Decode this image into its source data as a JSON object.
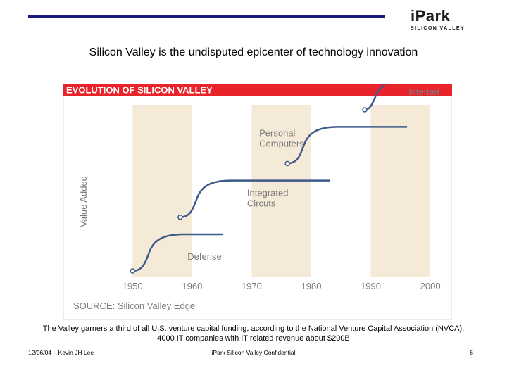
{
  "header": {
    "logo_main": "iPark",
    "logo_sub": "SILICON VALLEY"
  },
  "headline": "Silicon Valley is the undisputed epicenter of technology innovation",
  "figure": {
    "title": "EVOLUTION OF SILICON VALLEY",
    "source": "SOURCE: Silicon Valley Edge",
    "colors": {
      "banner": "#e8242a",
      "band": "#f5ead7",
      "line": "#3d5a8a",
      "label": "#7a7a7a"
    },
    "chart_data": {
      "type": "line",
      "title": "EVOLUTION OF SILICON VALLEY",
      "xlabel": "",
      "ylabel": "Value Added",
      "x_ticks": [
        "1950",
        "1960",
        "1970",
        "1980",
        "1990",
        "2000"
      ],
      "xlim": [
        1945,
        2002
      ],
      "shaded_decades": [
        [
          1950,
          1960
        ],
        [
          1970,
          1980
        ],
        [
          1990,
          2000
        ]
      ],
      "eras": [
        {
          "label_lines": [
            "Defense"
          ],
          "start": 1950,
          "level": 0
        },
        {
          "label_lines": [
            "Integrated",
            "Circuts"
          ],
          "start": 1958,
          "level": 1
        },
        {
          "label_lines": [
            "Personal",
            "Computers"
          ],
          "start": 1976,
          "level": 2
        },
        {
          "label_lines": [
            "Internet"
          ],
          "start": 1989,
          "level": 3
        }
      ]
    }
  },
  "caption": "The Valley garners a third of all U.S. venture capital funding, according to the National Venture Capital Association (NVCA). 4000 IT companies with IT related revenue about $200B",
  "footer": {
    "left": "12/06/04 – Kevin JH Lee",
    "center": "iPark Silicon Valley Confidential",
    "page": "6"
  }
}
